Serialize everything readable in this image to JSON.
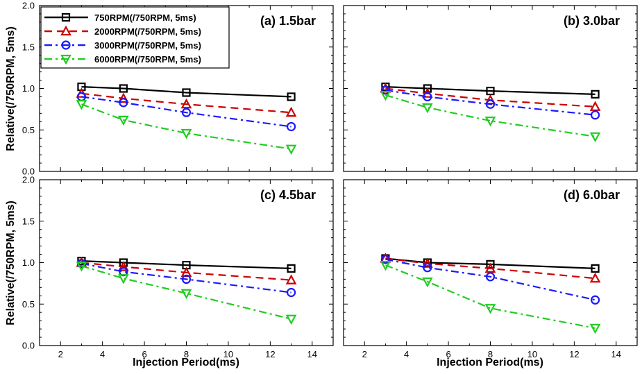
{
  "chart_data": {
    "type": "line",
    "xlabel": "Injection Period(ms)",
    "ylabel": "Relative(/750RPM, 5ms)",
    "xlim": [
      1,
      15
    ],
    "ylim": [
      0,
      2
    ],
    "xticks": [
      2,
      4,
      6,
      8,
      10,
      12,
      14
    ],
    "yticks": [
      0.0,
      0.5,
      1.0,
      1.5,
      2.0
    ],
    "ytick_labels": [
      "0.0",
      "0.5",
      "1.0",
      "1.5",
      "2.0"
    ],
    "legend_position": "top-left of panel (a)",
    "series_styles": [
      {
        "name": "750RPM(/750RPM, 5ms)",
        "color": "#000000",
        "marker": "square",
        "dash": "solid"
      },
      {
        "name": "2000RPM(/750RPM, 5ms)",
        "color": "#cc0000",
        "marker": "triangle-up",
        "dash": "dashed"
      },
      {
        "name": "3000RPM(/750RPM, 5ms)",
        "color": "#1a1aff",
        "marker": "circle",
        "dash": "dash-dot"
      },
      {
        "name": "6000RPM(/750RPM, 5ms)",
        "color": "#22cc22",
        "marker": "triangle-down",
        "dash": "dash-dot"
      }
    ],
    "x": [
      3,
      5,
      8,
      13
    ],
    "panels": [
      {
        "title": "(a) 1.5bar",
        "series": [
          {
            "name": "750RPM(/750RPM, 5ms)",
            "values": [
              1.02,
              1.0,
              0.95,
              0.9
            ]
          },
          {
            "name": "2000RPM(/750RPM, 5ms)",
            "values": [
              0.94,
              0.88,
              0.81,
              0.71
            ]
          },
          {
            "name": "3000RPM(/750RPM, 5ms)",
            "values": [
              0.9,
              0.83,
              0.71,
              0.54
            ]
          },
          {
            "name": "6000RPM(/750RPM, 5ms)",
            "values": [
              0.81,
              0.62,
              0.46,
              0.27
            ]
          }
        ]
      },
      {
        "title": "(b) 3.0bar",
        "series": [
          {
            "name": "750RPM(/750RPM, 5ms)",
            "values": [
              1.02,
              1.0,
              0.97,
              0.93
            ]
          },
          {
            "name": "2000RPM(/750RPM, 5ms)",
            "values": [
              1.0,
              0.94,
              0.86,
              0.78
            ]
          },
          {
            "name": "3000RPM(/750RPM, 5ms)",
            "values": [
              0.98,
              0.9,
              0.81,
              0.68
            ]
          },
          {
            "name": "6000RPM(/750RPM, 5ms)",
            "values": [
              0.92,
              0.77,
              0.61,
              0.42
            ]
          }
        ]
      },
      {
        "title": "(c) 4.5bar",
        "series": [
          {
            "name": "750RPM(/750RPM, 5ms)",
            "values": [
              1.02,
              1.0,
              0.97,
              0.93
            ]
          },
          {
            "name": "2000RPM(/750RPM, 5ms)",
            "values": [
              1.0,
              0.95,
              0.88,
              0.79
            ]
          },
          {
            "name": "3000RPM(/750RPM, 5ms)",
            "values": [
              0.99,
              0.89,
              0.8,
              0.64
            ]
          },
          {
            "name": "6000RPM(/750RPM, 5ms)",
            "values": [
              0.96,
              0.81,
              0.63,
              0.32
            ]
          }
        ]
      },
      {
        "title": "(d) 6.0bar",
        "series": [
          {
            "name": "750RPM(/750RPM, 5ms)",
            "values": [
              1.05,
              1.0,
              0.98,
              0.93
            ]
          },
          {
            "name": "2000RPM(/750RPM, 5ms)",
            "values": [
              1.05,
              0.99,
              0.93,
              0.81
            ]
          },
          {
            "name": "3000RPM(/750RPM, 5ms)",
            "values": [
              1.04,
              0.94,
              0.83,
              0.55
            ]
          },
          {
            "name": "6000RPM(/750RPM, 5ms)",
            "values": [
              0.97,
              0.77,
              0.45,
              0.21
            ]
          }
        ]
      }
    ]
  }
}
